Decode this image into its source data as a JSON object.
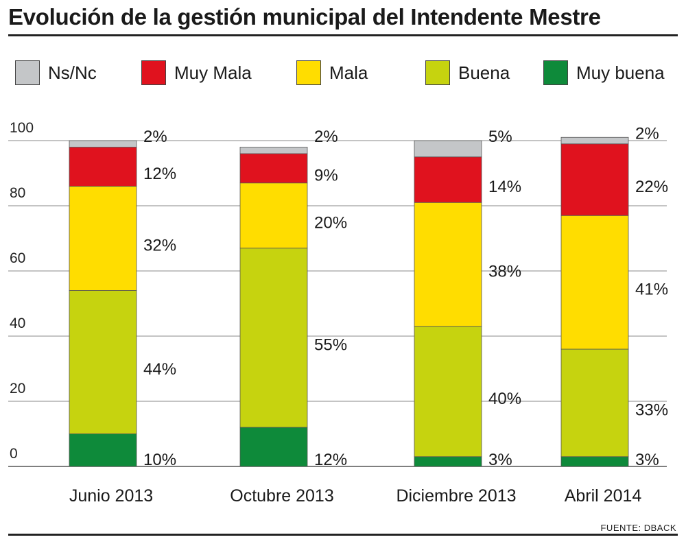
{
  "title": "Evolución de la gestión municipal del Intendente Mestre",
  "source": "FUENTE: DBACK",
  "chart_data": {
    "type": "bar",
    "stacked": true,
    "categories": [
      "Junio 2013",
      "Octubre 2013",
      "Diciembre 2013",
      "Abril 2014"
    ],
    "series": [
      {
        "name": "Muy buena",
        "color": "#0e8a3a",
        "values": [
          10,
          12,
          3,
          3
        ]
      },
      {
        "name": "Buena",
        "color": "#c6d30f",
        "values": [
          44,
          55,
          40,
          33
        ]
      },
      {
        "name": "Mala",
        "color": "#ffdd00",
        "values": [
          32,
          20,
          38,
          41
        ]
      },
      {
        "name": "Muy Mala",
        "color": "#e0121e",
        "values": [
          12,
          9,
          14,
          22
        ]
      },
      {
        "name": "Ns/Nc",
        "color": "#c4c6c8",
        "values": [
          2,
          2,
          5,
          2
        ]
      }
    ],
    "legend_order": [
      "Ns/Nc",
      "Muy Mala",
      "Mala",
      "Buena",
      "Muy buena"
    ],
    "value_labels": [
      [
        "10%",
        "44%",
        "32%",
        "12%",
        "2%"
      ],
      [
        "12%",
        "55%",
        "20%",
        "9%",
        "2%"
      ],
      [
        "3%",
        "40%",
        "38%",
        "14%",
        "5%"
      ],
      [
        "3%",
        "33%",
        "41%",
        "22%",
        "2%"
      ]
    ],
    "y_ticks": [
      0,
      20,
      40,
      60,
      80,
      100
    ],
    "ylim": [
      0,
      100
    ],
    "grid": true,
    "legend_position": "top"
  }
}
